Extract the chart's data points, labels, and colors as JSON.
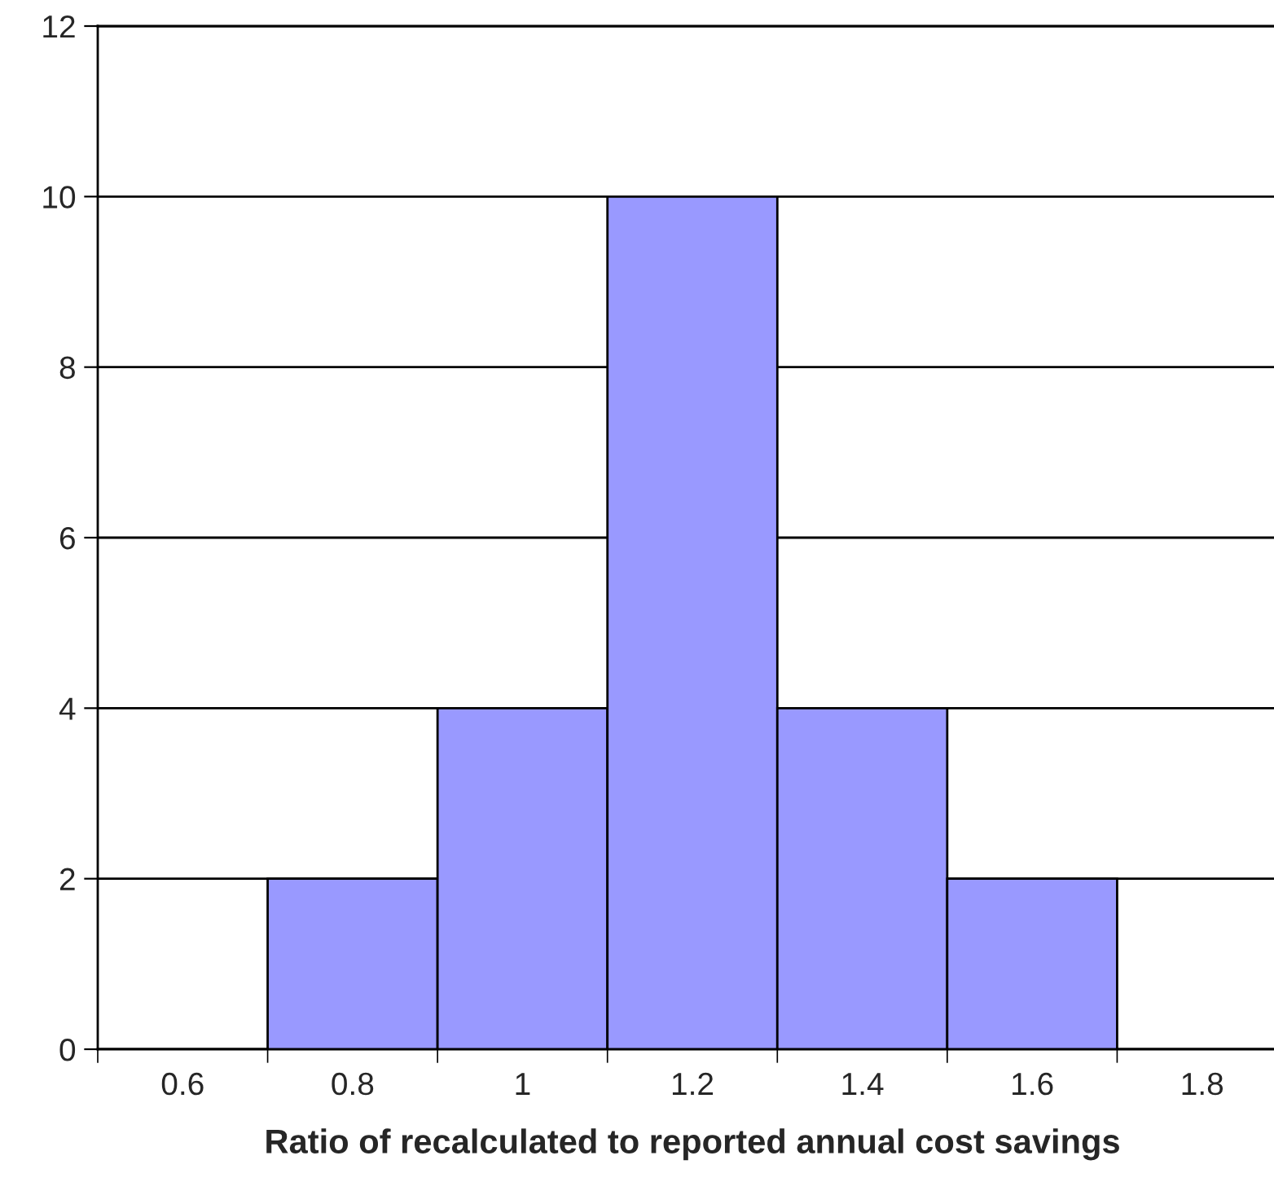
{
  "chart_data": {
    "type": "bar",
    "xlabel": "Ratio of recalculated to reported annual cost savings",
    "categories": [
      "0.6",
      "0.8",
      "1",
      "1.2",
      "1.4",
      "1.6",
      "1.8"
    ],
    "values": [
      0,
      2,
      4,
      10,
      4,
      2,
      0
    ],
    "color": "#9999ff",
    "ylim": [
      0,
      12
    ],
    "yticks": [
      0,
      2,
      4,
      6,
      8,
      10,
      12
    ],
    "grid": "y",
    "legend": false
  }
}
